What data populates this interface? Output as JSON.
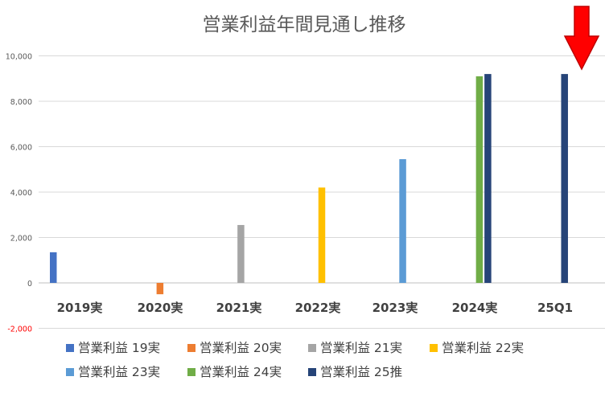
{
  "chart_data": {
    "type": "bar",
    "title": "営業利益年間見通し推移",
    "categories": [
      "2019実",
      "2020実",
      "2021実",
      "2022実",
      "2023実",
      "2024実",
      "25Q1"
    ],
    "ylim": [
      -2000,
      10000
    ],
    "yticks": [
      {
        "value": 10000,
        "label": "10,000"
      },
      {
        "value": 8000,
        "label": "8,000"
      },
      {
        "value": 6000,
        "label": "6,000"
      },
      {
        "value": 4000,
        "label": "4,000"
      },
      {
        "value": 2000,
        "label": "2,000"
      },
      {
        "value": 0,
        "label": "0"
      },
      {
        "value": -2000,
        "label": "-2,000"
      }
    ],
    "grid": true,
    "legend_position": "bottom",
    "series": [
      {
        "name": "営業利益 19実",
        "color": "#4472C4",
        "values": [
          1350,
          null,
          null,
          null,
          null,
          null,
          null
        ]
      },
      {
        "name": "営業利益 20実",
        "color": "#ED7D31",
        "values": [
          null,
          -500,
          null,
          null,
          null,
          null,
          null
        ]
      },
      {
        "name": "営業利益 21実",
        "color": "#A5A5A5",
        "values": [
          null,
          null,
          2550,
          null,
          null,
          null,
          null
        ]
      },
      {
        "name": "営業利益 22実",
        "color": "#FFC000",
        "values": [
          null,
          null,
          null,
          4200,
          null,
          null,
          null
        ]
      },
      {
        "name": "営業利益 23実",
        "color": "#5B9BD5",
        "values": [
          null,
          null,
          null,
          null,
          5450,
          null,
          null
        ]
      },
      {
        "name": "営業利益 24実",
        "color": "#70AD47",
        "values": [
          null,
          null,
          null,
          null,
          null,
          9100,
          null
        ]
      },
      {
        "name": "営業利益 25推",
        "color": "#264478",
        "values": [
          null,
          null,
          null,
          null,
          null,
          9200,
          9200
        ]
      }
    ],
    "annotation": {
      "type": "arrow",
      "color": "#FF0000",
      "points_to_category": "25Q1"
    }
  }
}
